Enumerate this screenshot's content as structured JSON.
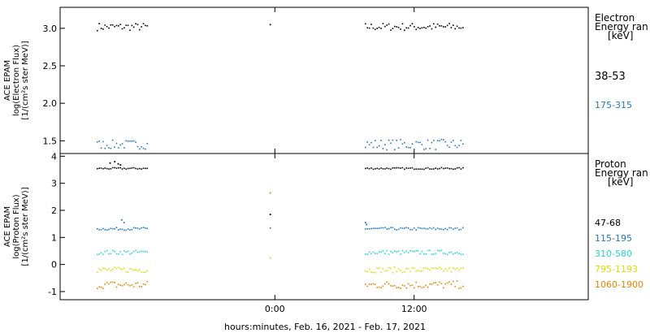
{
  "chart_data": [
    {
      "type": "scatter",
      "ylabel_lines": [
        "ACE EPAM",
        "log(Electron Flux)",
        "[1/(cm²s ster MeV)]"
      ],
      "yticks": [
        "3.0",
        "2.5",
        "2.0",
        "1.5"
      ],
      "ylim": [
        1.33,
        3.28
      ],
      "legend": {
        "title_lines": [
          "Electron",
          "Energy ran",
          "[keV]"
        ],
        "entries": [
          {
            "label": "38-53",
            "color": "#000000"
          },
          {
            "label": "175-315",
            "color": "#1f78c8"
          }
        ]
      },
      "series": [
        {
          "color": "#000000",
          "segments": [
            {
              "x_start": -15.3,
              "x_end": -11.0,
              "center": 3.02,
              "amp": 0.05
            },
            {
              "x_start": -0.4,
              "x_end": -0.4,
              "center": 3.05,
              "amp": 0.0
            },
            {
              "x_start": 7.8,
              "x_end": 16.2,
              "center": 3.02,
              "amp": 0.05
            }
          ]
        },
        {
          "color": "#1f78c8",
          "segments": [
            {
              "x_start": -15.3,
              "x_end": -11.0,
              "center": 1.45,
              "amp": 0.06
            },
            {
              "x_start": 7.8,
              "x_end": 16.2,
              "center": 1.45,
              "amp": 0.07
            }
          ]
        }
      ]
    },
    {
      "type": "scatter",
      "ylabel_lines": [
        "ACE EPAM",
        "log(Proton Flux)",
        "[1/(cm²s ster MeV)]"
      ],
      "yticks": [
        "4",
        "3",
        "2",
        "1",
        "0",
        "-1"
      ],
      "ylim": [
        -1.3,
        4.1
      ],
      "legend": {
        "title_lines": [
          "Proton",
          "Energy ran",
          "[keV]"
        ],
        "entries": [
          {
            "label": "47-68",
            "color": "#000000"
          },
          {
            "label": "115-195",
            "color": "#1f78c8"
          },
          {
            "label": "310-580",
            "color": "#29d6d6"
          },
          {
            "label": "795-1193",
            "color": "#d6e000"
          },
          {
            "label": "1060-1900",
            "color": "#f08000"
          }
        ]
      },
      "series": [
        {
          "color": "#000000",
          "segments": [
            {
              "x_start": -15.3,
              "x_end": -11.0,
              "center": 3.55,
              "amp": 0.03
            },
            {
              "x_start": 7.8,
              "x_end": 16.2,
              "center": 3.55,
              "amp": 0.03
            }
          ]
        },
        {
          "color": "#1f78c8",
          "segments": [
            {
              "x_start": -15.3,
              "x_end": -11.0,
              "center": 1.32,
              "amp": 0.05
            },
            {
              "x_start": -0.4,
              "x_end": -0.4,
              "center": 1.35,
              "amp": 0.0
            },
            {
              "x_start": 7.8,
              "x_end": 16.2,
              "center": 1.32,
              "amp": 0.05
            }
          ]
        },
        {
          "color": "#29d6d6",
          "segments": [
            {
              "x_start": -15.3,
              "x_end": -11.0,
              "center": 0.45,
              "amp": 0.08
            },
            {
              "x_start": 7.8,
              "x_end": 16.2,
              "center": 0.45,
              "amp": 0.08
            }
          ]
        },
        {
          "color": "#d6e000",
          "segments": [
            {
              "x_start": -15.3,
              "x_end": -11.0,
              "center": -0.2,
              "amp": 0.1
            },
            {
              "x_start": 7.8,
              "x_end": 16.2,
              "center": -0.2,
              "amp": 0.1
            }
          ]
        },
        {
          "color": "#f08000",
          "segments": [
            {
              "x_start": -15.3,
              "x_end": -11.0,
              "center": -0.75,
              "amp": 0.14
            },
            {
              "x_start": 7.8,
              "x_end": 16.2,
              "center": -0.75,
              "amp": 0.14
            }
          ]
        }
      ],
      "extra_points": [
        {
          "x": -14.2,
          "y": 3.75,
          "color": "#000000"
        },
        {
          "x": -13.8,
          "y": 3.8,
          "color": "#000000"
        },
        {
          "x": -13.5,
          "y": 3.72,
          "color": "#000000"
        },
        {
          "x": -13.3,
          "y": 3.68,
          "color": "#000000"
        },
        {
          "x": -13.2,
          "y": 1.65,
          "color": "#1f78c8"
        },
        {
          "x": -13.0,
          "y": 1.55,
          "color": "#1f78c8"
        },
        {
          "x": 7.8,
          "y": 1.55,
          "color": "#1f78c8"
        },
        {
          "x": 7.9,
          "y": 1.48,
          "color": "#1f78c8"
        },
        {
          "x": -0.4,
          "y": 2.65,
          "color": "#f08000"
        },
        {
          "x": -0.4,
          "y": 1.85,
          "color": "#000000"
        },
        {
          "x": -0.4,
          "y": 0.25,
          "color": "#d6e000"
        }
      ]
    }
  ],
  "x_axis": {
    "xlim": [
      -18.5,
      27.0
    ],
    "ticks": [
      {
        "value": 0,
        "label": "0:00"
      },
      {
        "value": 12,
        "label": "12:00"
      }
    ],
    "label": "hours:minutes, Feb. 16, 2021 - Feb. 17, 2021"
  }
}
